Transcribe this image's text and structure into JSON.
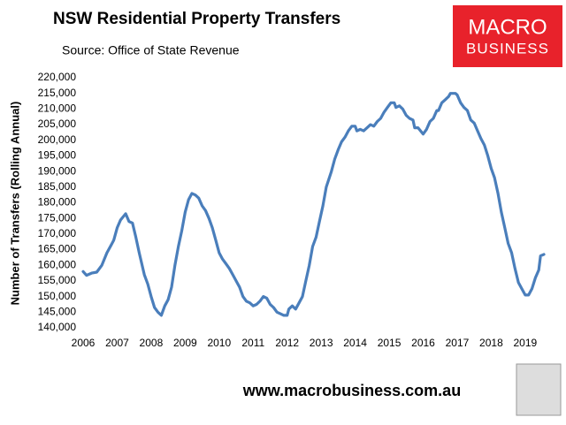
{
  "chart_data": {
    "type": "line",
    "title": "NSW Residential Property Transfers",
    "subtitle": "Source: Office of State Revenue",
    "ylabel": "Number of Transfers (Rolling Annual)",
    "logo": [
      "MACRO",
      "BUSINESS"
    ],
    "footer": "www.macrobusiness.com.au",
    "color": "#4a7ebb",
    "x": [
      2006.0,
      2006.1,
      2006.25,
      2006.4,
      2006.55,
      2006.7,
      2006.85,
      2006.9,
      2007.0,
      2007.1,
      2007.25,
      2007.35,
      2007.45,
      2007.55,
      2007.65,
      2007.8,
      2007.9,
      2008.0,
      2008.1,
      2008.2,
      2008.3,
      2008.4,
      2008.5,
      2008.6,
      2008.7,
      2008.8,
      2008.9,
      2009.0,
      2009.1,
      2009.2,
      2009.3,
      2009.4,
      2009.5,
      2009.6,
      2009.7,
      2009.8,
      2009.9,
      2010.0,
      2010.1,
      2010.2,
      2010.3,
      2010.4,
      2010.5,
      2010.6,
      2010.7,
      2010.8,
      2010.9,
      2011.0,
      2011.1,
      2011.2,
      2011.3,
      2011.4,
      2011.5,
      2011.6,
      2011.7,
      2011.8,
      2011.9,
      2012.0,
      2012.05,
      2012.15,
      2012.25,
      2012.35,
      2012.45,
      2012.55,
      2012.65,
      2012.75,
      2012.85,
      2012.95,
      2013.05,
      2013.15,
      2013.3,
      2013.4,
      2013.5,
      2013.6,
      2013.7,
      2013.8,
      2013.9,
      2014.0,
      2014.05,
      2014.15,
      2014.25,
      2014.35,
      2014.45,
      2014.55,
      2014.65,
      2014.75,
      2014.85,
      2014.95,
      2015.05,
      2015.15,
      2015.2,
      2015.3,
      2015.4,
      2015.5,
      2015.6,
      2015.7,
      2015.75,
      2015.85,
      2016.0,
      2016.1,
      2016.2,
      2016.3,
      2016.4,
      2016.45,
      2016.55,
      2016.65,
      2016.75,
      2016.8,
      2016.95,
      2017.0,
      2017.1,
      2017.2,
      2017.3,
      2017.4,
      2017.5,
      2017.6,
      2017.7,
      2017.8,
      2017.9,
      2018.0,
      2018.1,
      2018.2,
      2018.3,
      2018.4,
      2018.5,
      2018.6,
      2018.7,
      2018.8,
      2018.9,
      2019.0,
      2019.1,
      2019.2,
      2019.3,
      2019.4,
      2019.45,
      2019.55
    ],
    "values": [
      158000,
      156800,
      157500,
      157800,
      160000,
      164000,
      167000,
      168000,
      172000,
      174500,
      176500,
      174000,
      173500,
      169000,
      164000,
      157000,
      154000,
      150000,
      146500,
      145000,
      144000,
      147000,
      149000,
      153000,
      160000,
      166000,
      171000,
      177000,
      181000,
      183000,
      182500,
      181500,
      179000,
      177500,
      175000,
      172000,
      168000,
      164000,
      162000,
      160500,
      159000,
      157000,
      155000,
      153000,
      150000,
      148500,
      148000,
      147000,
      147500,
      148500,
      150000,
      149500,
      147500,
      146500,
      145000,
      144500,
      144000,
      144000,
      146000,
      147000,
      146000,
      148000,
      150000,
      155000,
      160000,
      166000,
      169000,
      174000,
      179000,
      185000,
      190000,
      194000,
      197000,
      199500,
      201000,
      203000,
      204500,
      204500,
      203000,
      203500,
      203000,
      204000,
      205000,
      204500,
      206000,
      207000,
      209000,
      210500,
      212000,
      212000,
      210500,
      211000,
      210000,
      208000,
      207000,
      206500,
      204000,
      204000,
      202000,
      203500,
      206000,
      207000,
      209500,
      209500,
      212000,
      213000,
      214000,
      215000,
      215000,
      214500,
      212000,
      210500,
      209500,
      206500,
      205500,
      203000,
      200500,
      198500,
      195000,
      191000,
      188000,
      183000,
      177000,
      172000,
      167000,
      164000,
      159000,
      154500,
      152500,
      150500,
      150500,
      152500,
      156000,
      158500,
      163000,
      163500
    ],
    "xlim": [
      2006,
      2019.55
    ],
    "xticks": [
      2006,
      2007,
      2008,
      2009,
      2010,
      2011,
      2012,
      2013,
      2014,
      2015,
      2016,
      2017,
      2018,
      2019
    ],
    "ylim": [
      140000,
      220000
    ],
    "yticks": [
      {
        "value": 140000,
        "label": "140,000"
      },
      {
        "value": 145000,
        "label": "145,000"
      },
      {
        "value": 150000,
        "label": "150,000"
      },
      {
        "value": 155000,
        "label": "155,000"
      },
      {
        "value": 160000,
        "label": "160,000"
      },
      {
        "value": 165000,
        "label": "165,000"
      },
      {
        "value": 170000,
        "label": "170,000"
      },
      {
        "value": 175000,
        "label": "175,000"
      },
      {
        "value": 180000,
        "label": "180,000"
      },
      {
        "value": 185000,
        "label": "185,000"
      },
      {
        "value": 190000,
        "label": "190,000"
      },
      {
        "value": 195000,
        "label": "195,000"
      },
      {
        "value": 200000,
        "label": "200,000"
      },
      {
        "value": 205000,
        "label": "205,000"
      },
      {
        "value": 210000,
        "label": "210,000"
      },
      {
        "value": 215000,
        "label": "215,000"
      },
      {
        "value": 220000,
        "label": "220,000"
      }
    ],
    "grid": false
  }
}
